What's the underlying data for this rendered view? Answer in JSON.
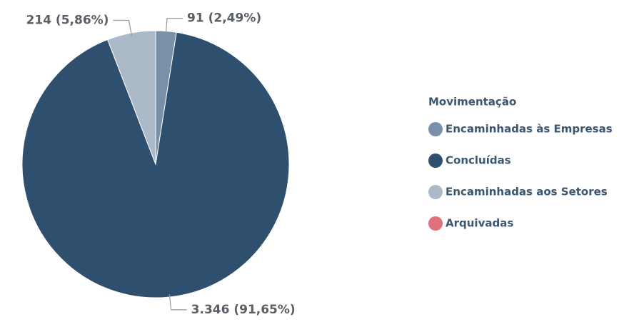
{
  "chart_data": {
    "type": "pie",
    "legend_title": "Movimentação",
    "categories": [
      "Encaminhadas às Empresas",
      "Concluídas",
      "Encaminhadas aos Setores",
      "Arquivadas"
    ],
    "values": [
      91,
      3346,
      214,
      0
    ],
    "value_labels": [
      "91 (2,49%)",
      "3.346 (91,65%)",
      "214 (5,86%)",
      null
    ],
    "colors": [
      "#7990a9",
      "#2f4f6e",
      "#abb9c8",
      "#e0707a"
    ],
    "legend": "right"
  }
}
